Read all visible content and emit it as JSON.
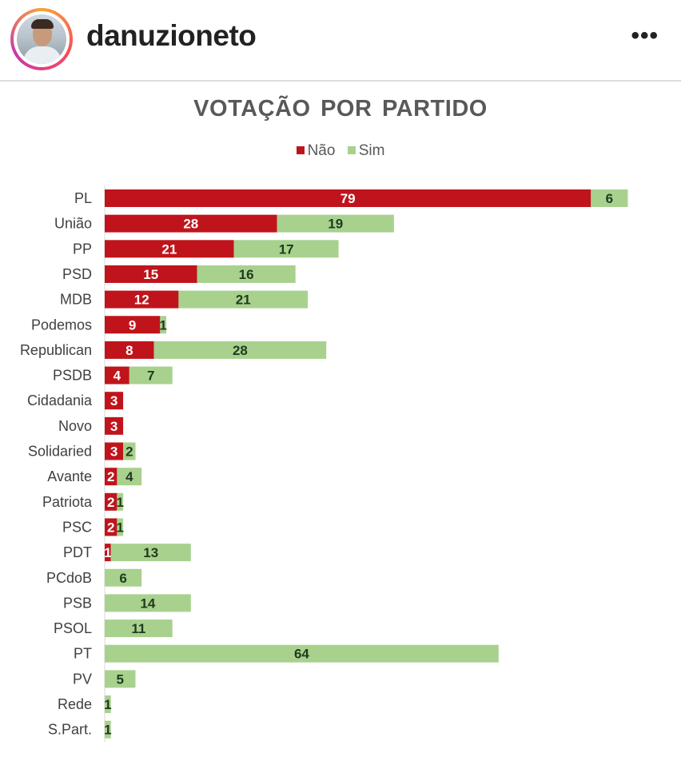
{
  "header": {
    "username": "danuzioneto",
    "more_icon": "•••"
  },
  "chart_data": {
    "type": "bar",
    "orientation": "horizontal",
    "stacked": true,
    "title": "VOTAÇÃO POR PARTIDO",
    "legend_position": "top",
    "categories": [
      "PL",
      "União",
      "PP",
      "PSD",
      "MDB",
      "Podemos",
      "Republican",
      "PSDB",
      "Cidadania",
      "Novo",
      "Solidaried",
      "Avante",
      "Patriota",
      "PSC",
      "PDT",
      "PCdoB",
      "PSB",
      "PSOL",
      "PT",
      "PV",
      "Rede",
      "S.Part."
    ],
    "series": [
      {
        "name": "Não",
        "color": "#c0141c",
        "values": [
          79,
          28,
          21,
          15,
          12,
          9,
          8,
          4,
          3,
          3,
          3,
          2,
          2,
          2,
          1,
          0,
          0,
          0,
          0,
          0,
          0,
          0
        ]
      },
      {
        "name": "Sim",
        "color": "#a9d18e",
        "values": [
          6,
          19,
          17,
          16,
          21,
          1,
          28,
          7,
          0,
          0,
          2,
          4,
          1,
          1,
          13,
          6,
          14,
          11,
          64,
          5,
          1,
          1
        ]
      }
    ],
    "grid": false
  }
}
